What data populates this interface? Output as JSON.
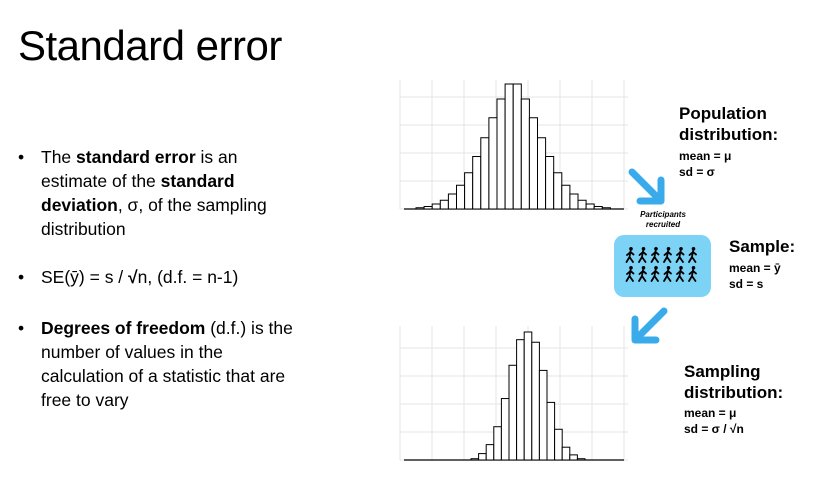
{
  "title": "Standard error",
  "bullets": {
    "b1": {
      "pre": "The ",
      "bold1": "standard error",
      "mid": " is an estimate of the ",
      "bold2": "standard deviation",
      "post": ", σ, of the sampling distribution"
    },
    "b2": {
      "pre": "SE(ȳ) = s / ",
      "sqrt": "√",
      "post": "n, (d.f. = n-1)"
    },
    "b3": {
      "bold": "Degrees of freedom",
      "post": " (d.f.) is the number of values in the calculation of a statistic that are free to vary"
    }
  },
  "population": {
    "title_line1": "Population",
    "title_line2": "distribution:",
    "mean": "mean = μ",
    "sd": "sd = σ"
  },
  "participants": {
    "line1": "Participants",
    "line2": "recruited"
  },
  "sample": {
    "title": "Sample:",
    "mean": "mean = ȳ",
    "sd": "sd = s"
  },
  "sampling": {
    "title_line1": "Sampling",
    "title_line2": "distribution:",
    "mean": "mean = μ",
    "sd_pre": "sd = σ / ",
    "sd_sqrt": "√",
    "sd_post": "n"
  },
  "colors": {
    "arrow": "#3aabea",
    "pill": "#7dd3f5",
    "grid": "#e4e4e4",
    "bar_fill": "#ffffff",
    "bar_stroke": "#000000"
  },
  "icons": {
    "people": "walking-person-icon"
  },
  "hist_population": {
    "counts": [
      1,
      2,
      4,
      7,
      12,
      19,
      29,
      42,
      57,
      73,
      88,
      100,
      100,
      88,
      73,
      57,
      42,
      29,
      19,
      12,
      7,
      4,
      2,
      1
    ]
  },
  "hist_sampling": {
    "counts": [
      1,
      5,
      12,
      26,
      48,
      74,
      94,
      100,
      92,
      70,
      45,
      24,
      10,
      4,
      1
    ]
  }
}
